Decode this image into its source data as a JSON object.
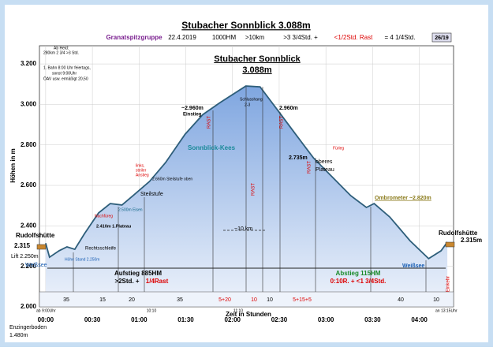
{
  "header": {
    "title": "Stubacher  Sonnblick  3.088m",
    "group": "Granatspitzgruppe",
    "date": "22.4.2019",
    "hm": "1000HM",
    "distance": ">10km",
    "time": ">3 3/4Std. +",
    "rest": "<1/2Std. Rast",
    "total": "= 4 1/4Std.",
    "badge": "26/19"
  },
  "chart_data": {
    "type": "area",
    "x_label": "Zeit in Stunden",
    "y_label": "Höhen in m",
    "x": [
      0,
      2.5,
      8.6,
      13.7,
      18.7,
      25,
      34,
      41.5,
      49,
      56.7,
      66.8,
      77,
      89.6,
      101,
      112,
      128.6,
      137.7,
      150,
      160.5,
      172,
      183,
      196,
      206,
      211,
      221,
      234,
      246,
      254,
      258
    ],
    "values": [
      2315,
      2245,
      2277,
      2296,
      2284,
      2362,
      2464,
      2510,
      2503,
      2553,
      2620,
      2713,
      2853,
      2950,
      3009,
      3091,
      3087,
      2962,
      2853,
      2736,
      2650,
      2549,
      2491,
      2510,
      2444,
      2327,
      2238,
      2277,
      2320
    ],
    "color": "#2e5e7a",
    "fill_top": "#7fa6e0",
    "fill_bottom": "#eef3fb",
    "xlim": [
      -4,
      262
    ],
    "ylim": [
      2000,
      3290
    ],
    "xticks": [
      {
        "value": 0,
        "label": "00:00"
      },
      {
        "value": 30,
        "label": "00:30"
      },
      {
        "value": 60,
        "label": "01:00"
      },
      {
        "value": 90,
        "label": "01:30"
      },
      {
        "value": 120,
        "label": "02:00"
      },
      {
        "value": 150,
        "label": "02:30"
      },
      {
        "value": 180,
        "label": "03:00"
      },
      {
        "value": 210,
        "label": "03:30"
      },
      {
        "value": 240,
        "label": "04:00"
      }
    ],
    "yticks": [
      {
        "value": 2000,
        "label": "2.000"
      },
      {
        "value": 2200,
        "label": "2.200"
      },
      {
        "value": 2400,
        "label": "2.400"
      },
      {
        "value": 2600,
        "label": "2.600"
      },
      {
        "value": 2800,
        "label": "2.800"
      },
      {
        "value": 3000,
        "label": "3.000"
      },
      {
        "value": 3200,
        "label": "3.200"
      }
    ],
    "grid": true,
    "annotations": [
      "Ab Heid:",
      "280km 2 3/4 >3 Std.",
      "1. Bahn 8:00 Uhr feiertags,",
      "sonst 9:00Uhr",
      "ÖAV usw. ermäßigt 20,50",
      "Stubacher  Sonnblick",
      "3.088m",
      "Rudolfshütte",
      "2.315",
      "Lift 2.250m",
      "Weißsee",
      "Höhe Stand 2.250m",
      "Rechtsschleife",
      "2.410m 1.Plateau",
      "Nachfüreg",
      "2.500m  Eisen",
      "Steilstufe",
      "links,",
      "steiler",
      "Anstieg",
      "2.660m Steilstufe oben",
      "~2.960m",
      "Einstieg",
      "RAST",
      "Sonnblick-Kees",
      "Schlusshang",
      "2-3",
      "RAST",
      "~10 km",
      "2.960m",
      "RAST",
      "2.735m",
      "oberes",
      "Plateau",
      "Fürleg",
      "RAST",
      "Ombrometer ~2.820m",
      "Rudolfshütte",
      "2.315m",
      "Weißsee",
      "Einkehr",
      "Aufstieg 885HM",
      ">2Std. +",
      "1/4Rast",
      "Abstieg 115HM",
      "0:10R. + <1 3/4Std.",
      "ab 9:00Uhr",
      "10:10",
      "11:10",
      "an 13:15Uhr",
      "Enzingerboden",
      "1.480m"
    ],
    "segment_labels": [
      "35",
      "15",
      "20",
      "35",
      "5+20",
      "10",
      "10",
      "5+15+5",
      "40",
      "10"
    ]
  }
}
